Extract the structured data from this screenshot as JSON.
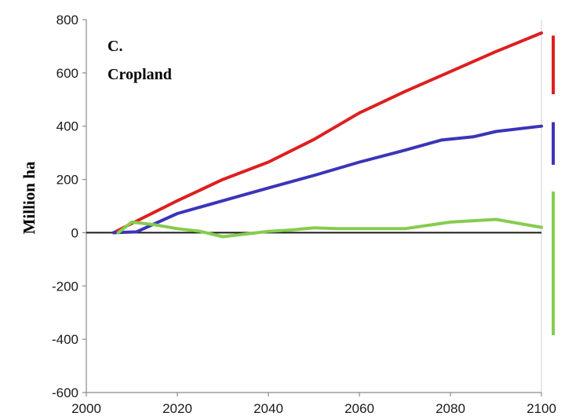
{
  "chart_data": {
    "type": "line",
    "title_line1": "C.",
    "title_line2": "Cropland",
    "xlabel": "",
    "ylabel": "Million ha",
    "xlim": [
      2000,
      2100
    ],
    "ylim": [
      -600,
      800
    ],
    "x_ticks": [
      2000,
      2020,
      2040,
      2060,
      2080,
      2100
    ],
    "y_ticks": [
      -600,
      -400,
      -200,
      0,
      200,
      400,
      600,
      800
    ],
    "grid": false,
    "zero_line": true,
    "series": [
      {
        "color": "#dd1f1f",
        "points": [
          [
            2006,
            0
          ],
          [
            2010,
            35
          ],
          [
            2020,
            120
          ],
          [
            2030,
            200
          ],
          [
            2040,
            265
          ],
          [
            2050,
            350
          ],
          [
            2060,
            450
          ],
          [
            2070,
            530
          ],
          [
            2080,
            605
          ],
          [
            2090,
            680
          ],
          [
            2100,
            750
          ]
        ]
      },
      {
        "color": "#3a35b8",
        "points": [
          [
            2006,
            0
          ],
          [
            2011,
            3
          ],
          [
            2020,
            72
          ],
          [
            2030,
            120
          ],
          [
            2040,
            168
          ],
          [
            2050,
            215
          ],
          [
            2060,
            265
          ],
          [
            2070,
            310
          ],
          [
            2078,
            348
          ],
          [
            2085,
            360
          ],
          [
            2090,
            380
          ],
          [
            2100,
            400
          ]
        ]
      },
      {
        "color": "#86cc4e",
        "points": [
          [
            2007,
            0
          ],
          [
            2010,
            40
          ],
          [
            2015,
            30
          ],
          [
            2020,
            15
          ],
          [
            2025,
            5
          ],
          [
            2030,
            -15
          ],
          [
            2035,
            -5
          ],
          [
            2040,
            5
          ],
          [
            2045,
            10
          ],
          [
            2050,
            18
          ],
          [
            2055,
            15
          ],
          [
            2060,
            15
          ],
          [
            2070,
            15
          ],
          [
            2080,
            40
          ],
          [
            2090,
            50
          ],
          [
            2100,
            20
          ]
        ]
      }
    ],
    "range_bars": [
      {
        "color": "#dd1f1f",
        "from": 520,
        "to": 740
      },
      {
        "color": "#3a35b8",
        "from": 255,
        "to": 415
      },
      {
        "color": "#86cc4e",
        "from": -385,
        "to": 155
      }
    ]
  }
}
